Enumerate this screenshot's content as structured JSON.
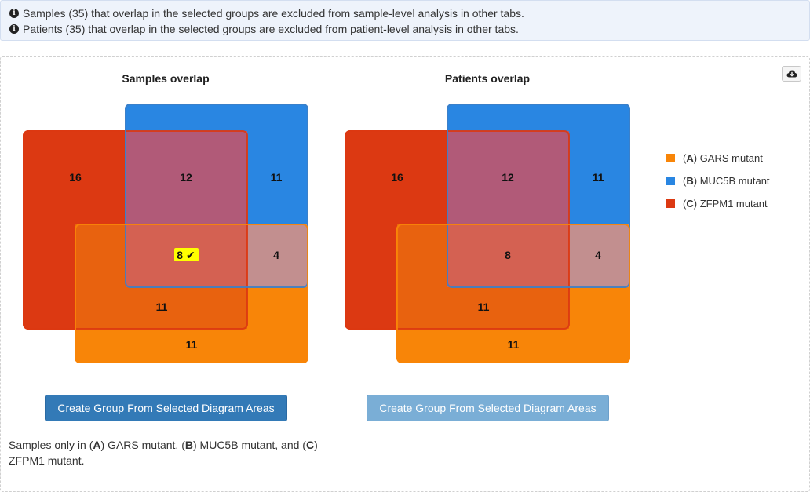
{
  "alerts": [
    "Samples (35) that overlap in the selected groups are excluded from sample-level analysis in other tabs.",
    "Patients (35) that overlap in the selected groups are excluded from patient-level analysis in other tabs."
  ],
  "icons": {
    "info": "info-icon",
    "download": "cloud-download-icon",
    "checkmark": "checkmark-icon"
  },
  "colors": {
    "A": "#f88508",
    "B": "#2986e2",
    "C": "#dc3912",
    "selected_highlight": "#ffff00",
    "primary_button": "#337ab7"
  },
  "charts": [
    {
      "title": "Samples overlap",
      "regions": {
        "C_only": "16",
        "BC": "12",
        "B_only": "11",
        "ABC": "8",
        "AB": "4",
        "AC": "11",
        "A_only": "11"
      },
      "selected_region": "ABC",
      "selected_mark": "✔",
      "button_label": "Create Group From Selected Diagram Areas",
      "button_enabled": true
    },
    {
      "title": "Patients overlap",
      "regions": {
        "C_only": "16",
        "BC": "12",
        "B_only": "11",
        "ABC": "8",
        "AB": "4",
        "AC": "11",
        "A_only": "11"
      },
      "selected_region": null,
      "button_label": "Create Group From Selected Diagram Areas",
      "button_enabled": false
    }
  ],
  "legend": [
    {
      "key": "A",
      "label": "GARS mutant",
      "color": "#f88508"
    },
    {
      "key": "B",
      "label": "MUC5B mutant",
      "color": "#2986e2"
    },
    {
      "key": "C",
      "label": "ZFPM1 mutant",
      "color": "#dc3912"
    }
  ],
  "summary": {
    "prefix": "Samples only in (",
    "a_key": "A",
    "a_text": ") GARS mutant, (",
    "b_key": "B",
    "b_text": ") MUC5B mutant, and (",
    "c_key": "C",
    "c_text": ") ZFPM1 mutant."
  }
}
